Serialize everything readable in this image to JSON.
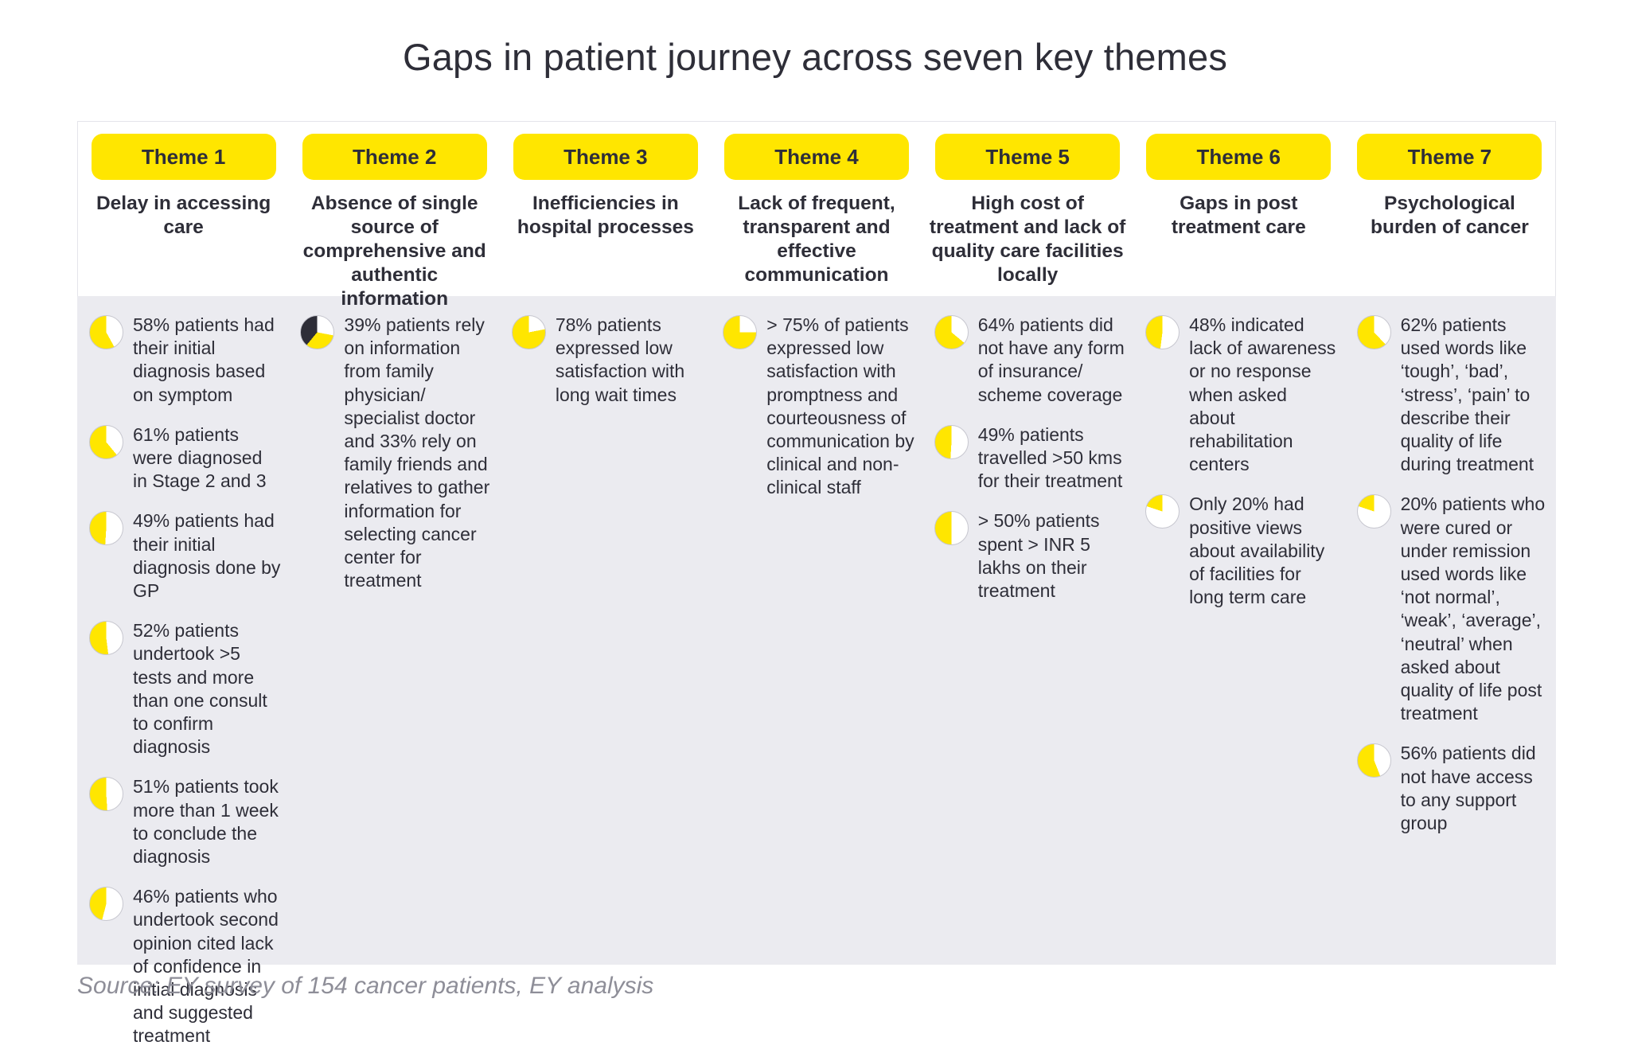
{
  "title": "Gaps in patient journey across seven key themes",
  "source": "Source: EY survey of 154 cancer patients, EY analysis",
  "colors": {
    "brand_yellow": "#ffe600",
    "brand_dark": "#2e2e38",
    "panel_gray": "#ebebf0",
    "text": "#2e2e38",
    "source_text": "#8e8e98"
  },
  "chart_data": {
    "type": "pie",
    "title": "Gaps in patient journey across seven key themes",
    "series": [
      {
        "name": "Theme 1 - Delay in accessing care",
        "values": [
          58,
          61,
          49,
          52,
          51,
          46
        ]
      },
      {
        "name": "Theme 2 - Absence of single source of comprehensive and authentic information",
        "values": [
          39,
          33
        ]
      },
      {
        "name": "Theme 3 - Inefficiencies in hospital processes",
        "values": [
          78
        ]
      },
      {
        "name": "Theme 4 - Lack of frequent, transparent and effective communication",
        "values": [
          75
        ]
      },
      {
        "name": "Theme 5 - High cost of treatment and lack of quality care facilities locally",
        "values": [
          64,
          49,
          50
        ]
      },
      {
        "name": "Theme 6 - Gaps in post treatment care",
        "values": [
          48,
          20
        ]
      },
      {
        "name": "Theme 7 - Psychological burden of cancer",
        "values": [
          62,
          20,
          56
        ]
      }
    ]
  },
  "themes": [
    {
      "label": "Theme 1",
      "subtitle": "Delay in accessing care",
      "bullets": [
        {
          "pie": [
            {
              "color": "#ffe600",
              "pct": 58
            }
          ],
          "text": "58% patients had their initial diagnosis based on symptom"
        },
        {
          "pie": [
            {
              "color": "#ffe600",
              "pct": 61
            }
          ],
          "text": "61% patients were diagnosed in Stage 2 and 3"
        },
        {
          "pie": [
            {
              "color": "#ffe600",
              "pct": 49
            }
          ],
          "text": "49% patients had their initial diagnosis done by GP"
        },
        {
          "pie": [
            {
              "color": "#ffe600",
              "pct": 52
            }
          ],
          "text": "52% patients undertook >5 tests and more than one consult to confirm diagnosis"
        },
        {
          "pie": [
            {
              "color": "#ffe600",
              "pct": 51
            }
          ],
          "text": "51% patients took more than 1 week to conclude the diagnosis"
        },
        {
          "pie": [
            {
              "color": "#ffe600",
              "pct": 46
            }
          ],
          "text": "46% patients who undertook second opinion cited lack of confidence in initial diagnosis and suggested treatment"
        }
      ]
    },
    {
      "label": "Theme 2",
      "subtitle": "Absence of single source of comprehensive and authentic information",
      "bullets": [
        {
          "pie": [
            {
              "color": "#2e2e38",
              "pct": 39
            },
            {
              "color": "#ffe600",
              "pct": 33
            }
          ],
          "text": "39% patients rely on information from family physician/ specialist doctor and 33% rely on family friends and relatives to gather information for selecting cancer center for treatment"
        }
      ]
    },
    {
      "label": "Theme 3",
      "subtitle": "Inefficiencies in hospital processes",
      "bullets": [
        {
          "pie": [
            {
              "color": "#ffe600",
              "pct": 78
            }
          ],
          "text": "78% patients expressed low satisfaction with long wait times"
        }
      ]
    },
    {
      "label": "Theme 4",
      "subtitle": "Lack of frequent, transparent and effective communication",
      "bullets": [
        {
          "pie": [
            {
              "color": "#ffe600",
              "pct": 75
            }
          ],
          "text": "> 75% of patients expressed low satisfaction with promptness and courteousness of communication by clinical and non-clinical staff"
        }
      ]
    },
    {
      "label": "Theme 5",
      "subtitle": "High cost of treatment and lack of quality care facilities locally",
      "bullets": [
        {
          "pie": [
            {
              "color": "#ffe600",
              "pct": 64
            }
          ],
          "text": "64% patients did not have any form of insurance/ scheme coverage"
        },
        {
          "pie": [
            {
              "color": "#ffe600",
              "pct": 49
            }
          ],
          "text": "49% patients travelled >50 kms for their treatment"
        },
        {
          "pie": [
            {
              "color": "#ffe600",
              "pct": 50
            }
          ],
          "text": "> 50% patients spent > INR 5 lakhs on their treatment"
        }
      ]
    },
    {
      "label": "Theme 6",
      "subtitle": "Gaps in post treatment care",
      "bullets": [
        {
          "pie": [
            {
              "color": "#ffe600",
              "pct": 48
            }
          ],
          "text": "48% indicated lack of awareness or no response when asked about rehabilitation centers"
        },
        {
          "pie": [
            {
              "color": "#ffe600",
              "pct": 20
            }
          ],
          "text": "Only 20% had positive views about availability of facilities for long term care"
        }
      ]
    },
    {
      "label": "Theme 7",
      "subtitle": "Psychological burden of cancer",
      "bullets": [
        {
          "pie": [
            {
              "color": "#ffe600",
              "pct": 62
            }
          ],
          "text": "62% patients used words like ‘tough’, ‘bad’, ‘stress’, ‘pain’ to describe their quality of life during treatment"
        },
        {
          "pie": [
            {
              "color": "#ffe600",
              "pct": 20
            }
          ],
          "text": "20% patients who were cured or under remission used words like ‘not normal’, ‘weak’, ‘average’, ‘neutral’ when asked about quality of life post treatment"
        },
        {
          "pie": [
            {
              "color": "#ffe600",
              "pct": 56
            }
          ],
          "text": "56% patients did not have access to any support group"
        }
      ]
    }
  ]
}
